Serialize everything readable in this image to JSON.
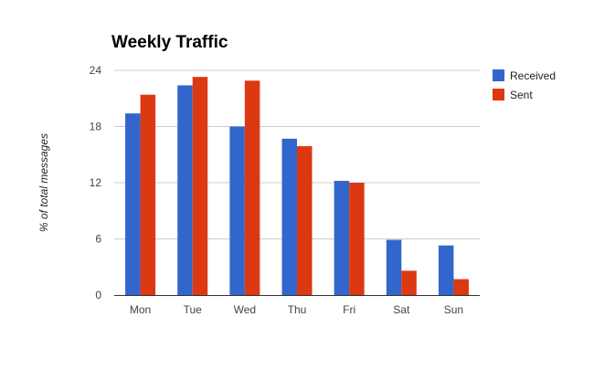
{
  "chart_data": {
    "type": "bar",
    "title": "Weekly Traffic",
    "xlabel": "",
    "ylabel": "% of total messages",
    "categories": [
      "Mon",
      "Tue",
      "Wed",
      "Thu",
      "Fri",
      "Sat",
      "Sun"
    ],
    "series": [
      {
        "name": "Received",
        "color": "#3366cc",
        "values": [
          19.4,
          22.4,
          18.0,
          16.7,
          12.2,
          5.9,
          5.3
        ]
      },
      {
        "name": "Sent",
        "color": "#dc3912",
        "values": [
          21.4,
          23.3,
          22.9,
          15.9,
          12.0,
          2.6,
          1.7
        ]
      }
    ],
    "ylim": [
      0,
      24
    ],
    "yticks": [
      "0",
      "6",
      "12",
      "18",
      "24"
    ],
    "grid": true,
    "legend": "right"
  }
}
